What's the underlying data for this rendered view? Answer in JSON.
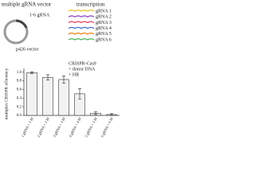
{
  "diagram": {
    "vector_title": "multiple gRNA vector",
    "insert_label": "1-6 gRNA",
    "backbone_label": "p426 vector",
    "transcription_title": "transcription",
    "transcripts": [
      {
        "name": "gRNA 1",
        "color": "#e8c020"
      },
      {
        "name": "gRNA 2",
        "color": "#8a4fc0"
      },
      {
        "name": "gRNA 3",
        "color": "#e04060"
      },
      {
        "name": "gRNA 4",
        "color": "#3a70d0"
      },
      {
        "name": "gRNA 5",
        "color": "#f08a20"
      },
      {
        "name": "gRNA 6",
        "color": "#40b050"
      }
    ]
  },
  "chart_data": {
    "type": "bar",
    "ylabel": "multiplex CRISPR efficiency",
    "annotation": [
      "CRISPR-Cas9",
      "+ donor DNA",
      "+ HR"
    ],
    "categories": [
      "1 gRNA + 1 M",
      "2 gRNA + 2 M",
      "3 gRNA + 3 M",
      "4 gRNA + 4 M",
      "5 gRNA + 5 M",
      "6 gRNA + 6 M"
    ],
    "values": [
      0.99,
      0.88,
      0.83,
      0.5,
      0.05,
      0.02
    ],
    "errors": [
      0.02,
      0.06,
      0.08,
      0.12,
      0.03,
      0.02
    ],
    "color": "#f2f2f2",
    "ylim": [
      0,
      1.05
    ],
    "yticks": [
      {
        "value": 0,
        "label": "0.0"
      },
      {
        "value": 0.2,
        "label": "0.2"
      },
      {
        "value": 0.4,
        "label": "0.4"
      },
      {
        "value": 0.6,
        "label": "0.6"
      },
      {
        "value": 0.8,
        "label": "0.8"
      },
      {
        "value": 1,
        "label": "1.0"
      }
    ]
  }
}
